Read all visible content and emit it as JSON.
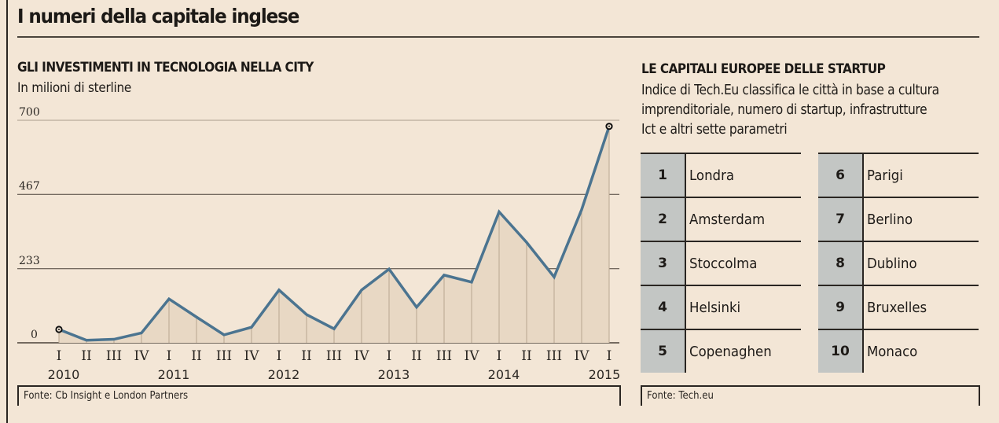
{
  "page": {
    "title": "I numeri della capitale inglese"
  },
  "left_panel": {
    "title": "GLI INVESTIMENTI IN TECNOLOGIA NELLA CITY",
    "subtitle": "In milioni di sterline",
    "source": "Fonte: Cb Insight e London Partners"
  },
  "right_panel": {
    "title": "LE CAPITALI EUROPEE DELLE STARTUP",
    "description_lines": [
      "Indice di Tech.Eu classifica le città in base a cultura",
      "imprenditoriale, numero di startup, infrastrutture",
      "Ict e altri sette parametri"
    ],
    "ranking": [
      {
        "rank": "1",
        "city": "Londra"
      },
      {
        "rank": "2",
        "city": "Amsterdam"
      },
      {
        "rank": "3",
        "city": "Stoccolma"
      },
      {
        "rank": "4",
        "city": "Helsinki"
      },
      {
        "rank": "5",
        "city": "Copenaghen"
      },
      {
        "rank": "6",
        "city": "Parigi"
      },
      {
        "rank": "7",
        "city": "Berlino"
      },
      {
        "rank": "8",
        "city": "Dublino"
      },
      {
        "rank": "9",
        "city": "Bruxelles"
      },
      {
        "rank": "10",
        "city": "Monaco"
      }
    ],
    "source": "Fonte: Tech.eu"
  },
  "chart_data": {
    "type": "area",
    "title": "GLI INVESTIMENTI IN TECNOLOGIA NELLA CITY",
    "subtitle": "In milioni di sterline",
    "xlabel": "",
    "ylabel": "In milioni di sterline",
    "ylim": [
      0,
      700
    ],
    "yticks": [
      0,
      233,
      467,
      700
    ],
    "grid": true,
    "quarters": [
      "I",
      "II",
      "III",
      "IV",
      "I",
      "II",
      "III",
      "IV",
      "I",
      "II",
      "III",
      "IV",
      "I",
      "II",
      "III",
      "IV",
      "I",
      "II",
      "III",
      "IV",
      "I"
    ],
    "years": [
      {
        "label": "2010",
        "at_index": 0
      },
      {
        "label": "2011",
        "at_index": 4
      },
      {
        "label": "2012",
        "at_index": 8
      },
      {
        "label": "2013",
        "at_index": 12
      },
      {
        "label": "2014",
        "at_index": 16
      },
      {
        "label": "2015",
        "at_index": 20
      }
    ],
    "series": [
      {
        "name": "Investimenti",
        "color": "#4b7490",
        "fill": "#e8d8c4",
        "values": [
          42,
          8,
          11,
          31,
          138,
          81,
          25,
          49,
          166,
          89,
          44,
          166,
          232,
          112,
          213,
          191,
          412,
          316,
          207,
          419,
          681
        ]
      }
    ],
    "markers": [
      0,
      20
    ]
  },
  "colors": {
    "background": "#f3e6d6",
    "line": "#4b7490",
    "rank_cell": "#c3c6c4"
  }
}
